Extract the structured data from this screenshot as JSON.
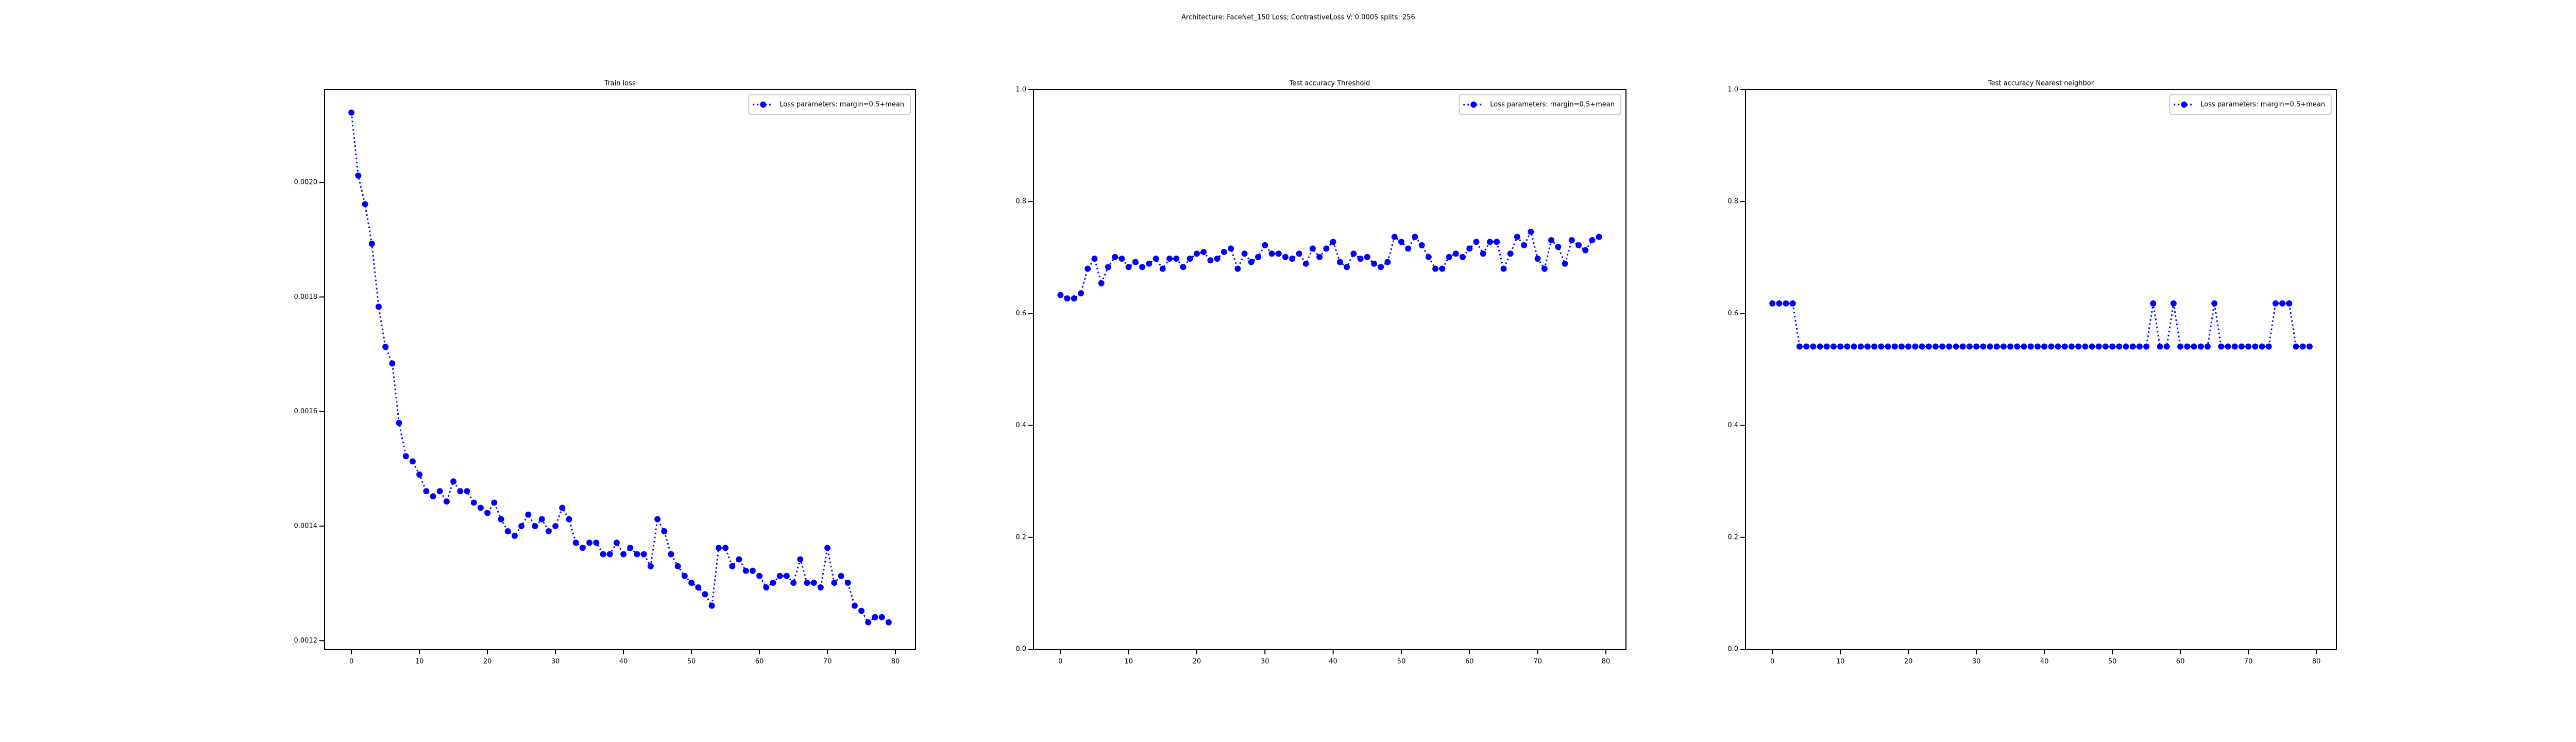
{
  "title": "Architecture: FaceNet_150 Loss: ContrastiveLoss V: 0.0005 splits: 256",
  "chart_data": [
    {
      "type": "line",
      "title": "Train loss",
      "x": [
        0,
        1,
        2,
        3,
        4,
        5,
        6,
        7,
        8,
        9,
        10,
        11,
        12,
        13,
        14,
        15,
        16,
        17,
        18,
        19,
        20,
        21,
        22,
        23,
        24,
        25,
        26,
        27,
        28,
        29,
        30,
        31,
        32,
        33,
        34,
        35,
        36,
        37,
        38,
        39,
        40,
        41,
        42,
        43,
        44,
        45,
        46,
        47,
        48,
        49,
        50,
        51,
        52,
        53,
        54,
        55,
        56,
        57,
        58,
        59,
        60,
        61,
        62,
        63,
        64,
        65,
        66,
        67,
        68,
        69,
        70,
        71,
        72,
        73,
        74,
        75,
        76,
        77,
        78,
        79
      ],
      "series": [
        {
          "name": "Loss parameters: margin=0.5+mean",
          "color": "#0000ff",
          "values": [
            0.002122,
            0.002012,
            0.001962,
            0.001893,
            0.001783,
            0.001713,
            0.001684,
            0.00158,
            0.001522,
            0.001513,
            0.00149,
            0.001461,
            0.001452,
            0.001461,
            0.001443,
            0.001478,
            0.001461,
            0.001461,
            0.001441,
            0.001432,
            0.001423,
            0.001441,
            0.001412,
            0.001391,
            0.001383,
            0.0014,
            0.00142,
            0.0014,
            0.001412,
            0.001391,
            0.0014,
            0.001432,
            0.001412,
            0.001371,
            0.001362,
            0.001371,
            0.001371,
            0.001351,
            0.001351,
            0.001371,
            0.001351,
            0.001362,
            0.001351,
            0.001351,
            0.00133,
            0.001412,
            0.001391,
            0.001351,
            0.00133,
            0.001313,
            0.001301,
            0.001293,
            0.001281,
            0.001261,
            0.001362,
            0.001362,
            0.00133,
            0.001342,
            0.001322,
            0.001322,
            0.001313,
            0.001293,
            0.001301,
            0.001313,
            0.001313,
            0.001301,
            0.001342,
            0.001301,
            0.001301,
            0.001293,
            0.001362,
            0.001301,
            0.001313,
            0.001301,
            0.001261,
            0.001252,
            0.001232,
            0.001241,
            0.001241,
            0.001232
          ]
        }
      ],
      "xlim": [
        -3.95,
        82.95
      ],
      "xticks": [
        0,
        10,
        20,
        30,
        40,
        50,
        60,
        70,
        80
      ],
      "ylim": [
        0.001185,
        0.002162
      ],
      "yticks": [
        0.0012,
        0.0014,
        0.0016,
        0.0018,
        {
          "value": 0.002,
          "label": "0.0020"
        }
      ],
      "legend": "upper right"
    },
    {
      "type": "line",
      "title": "Test accuracy Threshold",
      "x": [
        0,
        1,
        2,
        3,
        4,
        5,
        6,
        7,
        8,
        9,
        10,
        11,
        12,
        13,
        14,
        15,
        16,
        17,
        18,
        19,
        20,
        21,
        22,
        23,
        24,
        25,
        26,
        27,
        28,
        29,
        30,
        31,
        32,
        33,
        34,
        35,
        36,
        37,
        38,
        39,
        40,
        41,
        42,
        43,
        44,
        45,
        46,
        47,
        48,
        49,
        50,
        51,
        52,
        53,
        54,
        55,
        56,
        57,
        58,
        59,
        60,
        61,
        62,
        63,
        64,
        65,
        66,
        67,
        68,
        69,
        70,
        71,
        72,
        73,
        74,
        75,
        76,
        77,
        78,
        79
      ],
      "series": [
        {
          "name": "Loss parameters: margin=0.5+mean",
          "color": "#0000ff",
          "values": [
            0.633,
            0.627,
            0.627,
            0.636,
            0.68,
            0.698,
            0.654,
            0.683,
            0.701,
            0.698,
            0.683,
            0.692,
            0.683,
            0.689,
            0.698,
            0.68,
            0.698,
            0.698,
            0.683,
            0.698,
            0.707,
            0.71,
            0.695,
            0.698,
            0.71,
            0.716,
            0.68,
            0.707,
            0.692,
            0.701,
            0.722,
            0.707,
            0.707,
            0.701,
            0.698,
            0.707,
            0.689,
            0.716,
            0.701,
            0.716,
            0.728,
            0.692,
            0.683,
            0.707,
            0.698,
            0.701,
            0.689,
            0.683,
            0.692,
            0.737,
            0.728,
            0.716,
            0.737,
            0.722,
            0.701,
            0.68,
            0.68,
            0.701,
            0.707,
            0.701,
            0.716,
            0.728,
            0.707,
            0.728,
            0.728,
            0.68,
            0.707,
            0.737,
            0.722,
            0.746,
            0.698,
            0.68,
            0.731,
            0.719,
            0.689,
            0.731,
            0.722,
            0.713,
            0.731,
            0.737
          ]
        }
      ],
      "xlim": [
        -3.95,
        82.95
      ],
      "xticks": [
        0,
        10,
        20,
        30,
        40,
        50,
        60,
        70,
        80
      ],
      "ylim": [
        0,
        1
      ],
      "yticks": [
        {
          "value": 0,
          "label": "0.0"
        },
        0.2,
        0.4,
        0.6,
        0.8,
        {
          "value": 1,
          "label": "1.0"
        }
      ],
      "legend": "upper right"
    },
    {
      "type": "line",
      "title": "Test accuracy Nearest neighbor",
      "x": [
        0,
        1,
        2,
        3,
        4,
        5,
        6,
        7,
        8,
        9,
        10,
        11,
        12,
        13,
        14,
        15,
        16,
        17,
        18,
        19,
        20,
        21,
        22,
        23,
        24,
        25,
        26,
        27,
        28,
        29,
        30,
        31,
        32,
        33,
        34,
        35,
        36,
        37,
        38,
        39,
        40,
        41,
        42,
        43,
        44,
        45,
        46,
        47,
        48,
        49,
        50,
        51,
        52,
        53,
        54,
        55,
        56,
        57,
        58,
        59,
        60,
        61,
        62,
        63,
        64,
        65,
        66,
        67,
        68,
        69,
        70,
        71,
        72,
        73,
        74,
        75,
        76,
        77,
        78,
        79
      ],
      "series": [
        {
          "name": "Loss parameters: margin=0.5+mean",
          "color": "#0000ff",
          "values": [
            0.618,
            0.618,
            0.618,
            0.618,
            0.541,
            0.541,
            0.541,
            0.541,
            0.541,
            0.541,
            0.541,
            0.541,
            0.541,
            0.541,
            0.541,
            0.541,
            0.541,
            0.541,
            0.541,
            0.541,
            0.541,
            0.541,
            0.541,
            0.541,
            0.541,
            0.541,
            0.541,
            0.541,
            0.541,
            0.541,
            0.541,
            0.541,
            0.541,
            0.541,
            0.541,
            0.541,
            0.541,
            0.541,
            0.541,
            0.541,
            0.541,
            0.541,
            0.541,
            0.541,
            0.541,
            0.541,
            0.541,
            0.541,
            0.541,
            0.541,
            0.541,
            0.541,
            0.541,
            0.541,
            0.541,
            0.541,
            0.618,
            0.541,
            0.541,
            0.618,
            0.541,
            0.541,
            0.541,
            0.541,
            0.541,
            0.618,
            0.541,
            0.541,
            0.541,
            0.541,
            0.541,
            0.541,
            0.541,
            0.541,
            0.618,
            0.618,
            0.618,
            0.541,
            0.541,
            0.541
          ]
        }
      ],
      "xlim": [
        -3.95,
        82.95
      ],
      "xticks": [
        0,
        10,
        20,
        30,
        40,
        50,
        60,
        70,
        80
      ],
      "ylim": [
        0,
        1
      ],
      "yticks": [
        {
          "value": 0,
          "label": "0.0"
        },
        0.2,
        0.4,
        0.6,
        0.8,
        {
          "value": 1,
          "label": "1.0"
        }
      ],
      "legend": "upper right"
    }
  ]
}
